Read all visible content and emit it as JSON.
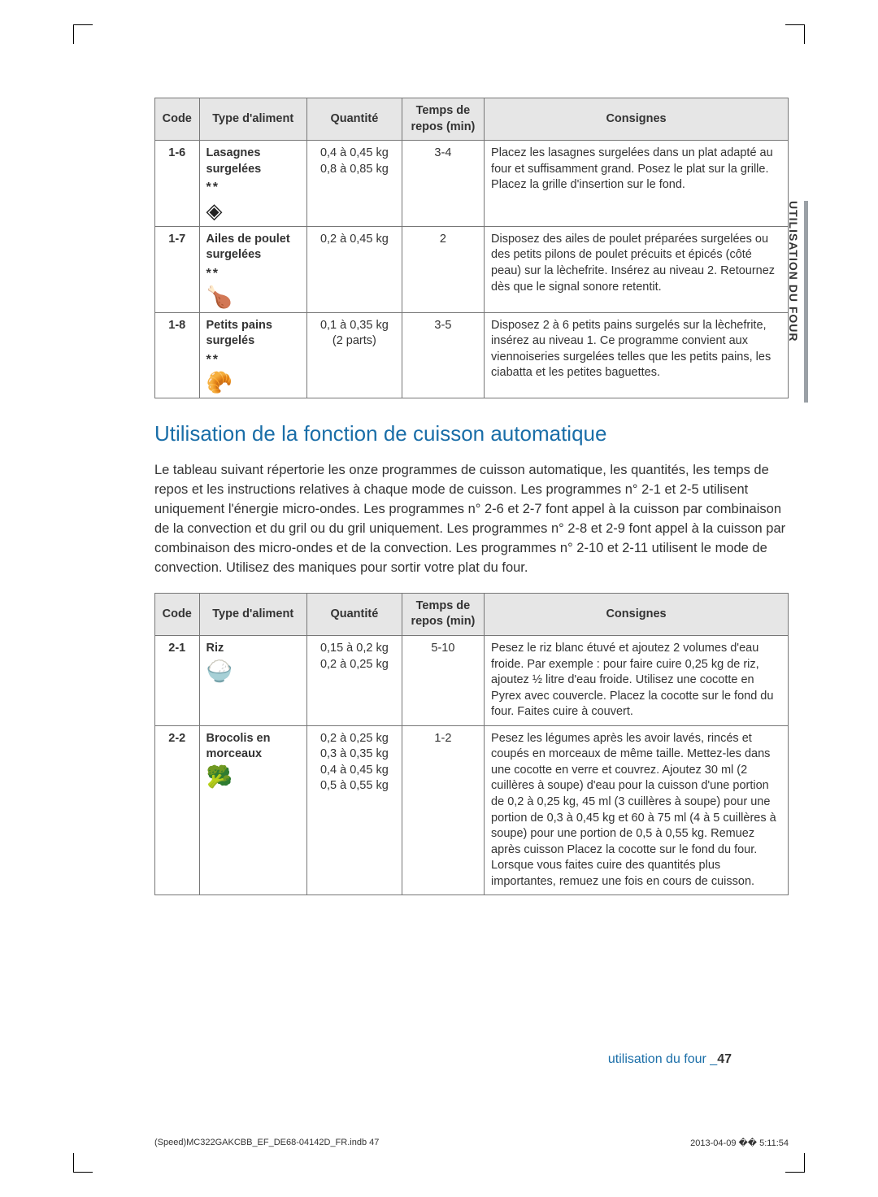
{
  "sideTab": "UTILISATION DU FOUR",
  "table1": {
    "headers": [
      "Code",
      "Type d'aliment",
      "Quantité",
      "Temps de repos (min)",
      "Consignes"
    ],
    "rows": [
      {
        "code": "1-6",
        "name": "Lasagnes surgelées",
        "stars": "**",
        "icon": "◈",
        "qty": "0,4 à 0,45 kg\n0,8 à 0,85 kg",
        "rest": "3-4",
        "instr": "Placez les lasagnes surgelées dans un plat adapté au four et suffisamment grand. Posez le plat sur la grille. Placez la grille d'insertion sur le fond."
      },
      {
        "code": "1-7",
        "name": "Ailes de poulet surgelées",
        "stars": "**",
        "icon": "🍗",
        "qty": "0,2 à 0,45 kg",
        "rest": "2",
        "instr": "Disposez des ailes de poulet préparées surgelées ou des petits pilons de poulet précuits et épicés (côté peau) sur la lèchefrite. Insérez au niveau 2. Retournez dès que le signal sonore retentit."
      },
      {
        "code": "1-8",
        "name": "Petits pains surgelés",
        "stars": "**",
        "icon": "🥐",
        "qty": "0,1 à 0,35 kg\n(2 parts)",
        "rest": "3-5",
        "instr": "Disposez 2 à 6 petits pains surgelés sur la lèchefrite, insérez au niveau 1. Ce programme convient aux viennoiseries surgelées telles que les petits pains, les ciabatta et les petites baguettes."
      }
    ]
  },
  "sectionTitle": "Utilisation de la fonction de cuisson automatique",
  "bodyText": "Le tableau suivant répertorie les onze programmes de cuisson automatique, les quantités, les temps de repos et les instructions relatives à chaque mode de cuisson. Les programmes n° 2-1 et 2-5 utilisent uniquement l'énergie micro-ondes. Les programmes n° 2-6 et 2-7 font appel à la cuisson par combinaison de la convection et du gril ou du gril uniquement. Les programmes n° 2-8 et 2-9 font appel à la cuisson par combinaison des micro-ondes et de la convection. Les programmes n° 2-10 et 2-11 utilisent le mode de convection. Utilisez des maniques pour sortir votre plat du four.",
  "table2": {
    "headers": [
      "Code",
      "Type d'aliment",
      "Quantité",
      "Temps de repos (min)",
      "Consignes"
    ],
    "rows": [
      {
        "code": "2-1",
        "name": "Riz",
        "icon": "🍚",
        "qty": "0,15 à 0,2 kg\n0,2 à 0,25 kg",
        "rest": "5-10",
        "instr": "Pesez le riz blanc étuvé et ajoutez 2 volumes d'eau froide. Par exemple : pour faire cuire 0,25 kg de riz, ajoutez ½ litre d'eau froide. Utilisez une cocotte en Pyrex avec couvercle. Placez la cocotte sur le fond du four. Faites cuire à couvert."
      },
      {
        "code": "2-2",
        "name": "Brocolis en morceaux",
        "icon": "🥦",
        "qty": "0,2 à 0,25 kg\n0,3 à 0,35 kg\n0,4 à 0,45 kg\n0,5 à 0,55 kg",
        "rest": "1-2",
        "instr": "Pesez les légumes après les avoir lavés, rincés et coupés en morceaux de même taille. Mettez-les dans une cocotte en verre et couvrez. Ajoutez 30 ml (2 cuillères à soupe) d'eau pour la cuisson d'une portion de 0,2 à 0,25 kg, 45 ml (3 cuillères à soupe) pour une portion de 0,3 à 0,45 kg et 60 à 75 ml (4 à 5 cuillères à soupe) pour une portion de 0,5 à 0,55 kg. Remuez après cuisson Placez la cocotte sur le fond du four. Lorsque vous faites cuire des quantités plus importantes, remuez une fois en cours de cuisson."
      }
    ]
  },
  "footerText": "utilisation du four _",
  "footerPage": "47",
  "printLeft": "(Speed)MC322GAKCBB_EF_DE68-04142D_FR.indb   47",
  "printRight": "2013-04-09   �� 5:11:54"
}
